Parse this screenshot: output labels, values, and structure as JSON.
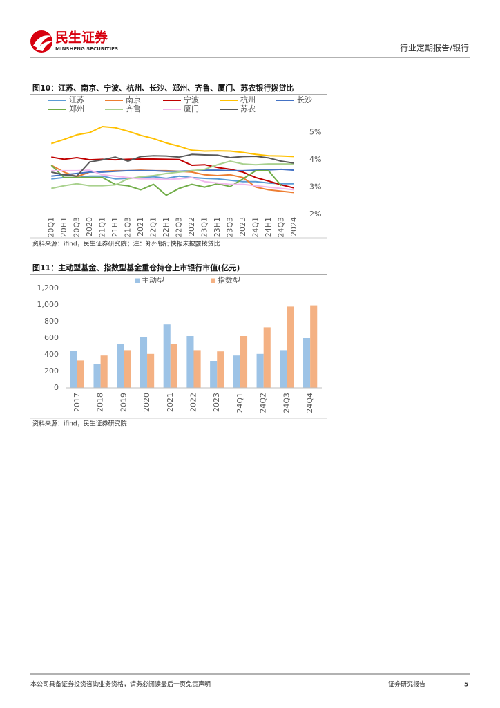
{
  "header": {
    "logo_cn": "民生证券",
    "logo_en": "MINSHENG SECURITIES",
    "section": "行业定期报告/银行"
  },
  "chart_data": [
    {
      "type": "line",
      "title": "图10：江苏、南京、宁波、杭州、长沙、郑州、齐鲁、厦门、苏农银行拨贷比",
      "source": "资料来源：ifind，民生证券研究院；注：郑州银行快报未披露拨贷比",
      "categories": [
        "20Q1",
        "20H1",
        "20Q3",
        "2020",
        "21Q1",
        "21H1",
        "21Q3",
        "2021",
        "22Q1",
        "22H1",
        "22Q3",
        "2022",
        "23Q1",
        "23H1",
        "23Q3",
        "2023",
        "24Q1",
        "24H1",
        "24Q3",
        "2024"
      ],
      "ylim": [
        2,
        5.5
      ],
      "yticks": [
        {
          "value": 2,
          "label": "2%"
        },
        {
          "value": 3,
          "label": "3%"
        },
        {
          "value": 4,
          "label": "4%"
        },
        {
          "value": 5,
          "label": "5%"
        }
      ],
      "y_axis_side": "right",
      "grid": false,
      "series": [
        {
          "name": "江苏",
          "color": "#5b9bd5",
          "values": [
            3.3,
            3.35,
            3.35,
            3.4,
            3.4,
            3.3,
            3.32,
            3.35,
            3.38,
            3.32,
            3.4,
            3.35,
            3.32,
            3.3,
            3.25,
            3.2,
            3.2,
            3.15,
            3.12,
            3.12
          ]
        },
        {
          "name": "南京",
          "color": "#ed7d31",
          "values": [
            3.8,
            3.55,
            3.38,
            3.55,
            3.58,
            3.6,
            3.6,
            3.62,
            3.6,
            3.6,
            3.58,
            3.55,
            3.45,
            3.42,
            3.45,
            3.35,
            3.0,
            2.9,
            2.85,
            2.8
          ]
        },
        {
          "name": "宁波",
          "color": "#c00000",
          "values": [
            4.1,
            4.02,
            4.08,
            4.0,
            4.02,
            4.0,
            4.02,
            4.03,
            4.03,
            4.02,
            4.01,
            3.8,
            3.82,
            3.72,
            3.65,
            3.55,
            3.35,
            3.22,
            3.08,
            2.97
          ]
        },
        {
          "name": "杭州",
          "color": "#ffc000",
          "values": [
            4.6,
            4.75,
            4.92,
            5.0,
            5.22,
            5.18,
            5.05,
            4.9,
            4.78,
            4.62,
            4.5,
            4.35,
            4.32,
            4.33,
            4.32,
            4.27,
            4.2,
            4.15,
            4.14,
            4.12
          ]
        },
        {
          "name": "长沙",
          "color": "#4472c4",
          "values": [
            3.4,
            3.45,
            3.5,
            3.55,
            3.55,
            3.58,
            3.6,
            3.6,
            3.6,
            3.58,
            3.58,
            3.6,
            3.62,
            3.62,
            3.6,
            3.6,
            3.62,
            3.63,
            3.65,
            3.62
          ]
        },
        {
          "name": "郑州",
          "color": "#70ad47",
          "values": [
            3.8,
            3.35,
            3.35,
            3.35,
            3.35,
            3.1,
            3.05,
            2.9,
            3.1,
            2.7,
            2.95,
            3.1,
            3.0,
            3.12,
            3.02,
            3.3,
            3.6,
            3.6,
            3.05,
            null
          ]
        },
        {
          "name": "齐鲁",
          "color": "#a9d18e",
          "values": [
            2.95,
            3.05,
            3.12,
            3.05,
            3.05,
            3.08,
            3.3,
            3.38,
            3.42,
            3.5,
            3.55,
            3.6,
            3.65,
            3.82,
            3.95,
            3.85,
            3.82,
            3.85,
            3.85,
            3.85
          ]
        },
        {
          "name": "厦门",
          "color": "#f2b8ee",
          "values": [
            3.6,
            3.6,
            3.6,
            3.62,
            3.45,
            3.4,
            3.35,
            3.3,
            3.3,
            3.28,
            3.3,
            3.35,
            3.2,
            3.15,
            3.1,
            3.1,
            3.05,
            3.0,
            2.95,
            2.9
          ]
        },
        {
          "name": "苏农",
          "color": "#595959",
          "values": [
            3.55,
            3.45,
            3.4,
            3.92,
            4.0,
            4.1,
            3.95,
            4.12,
            4.15,
            4.14,
            4.1,
            4.2,
            4.18,
            4.17,
            4.08,
            4.12,
            4.13,
            4.07,
            3.95,
            3.88
          ]
        }
      ]
    },
    {
      "type": "bar",
      "title": "图11：主动型基金、指数型基金重仓持仓上市银行市值(亿元)",
      "source": "资料来源：ifind，民生证券研究院",
      "categories": [
        "2017",
        "2018",
        "2019",
        "2020",
        "2021",
        "2022",
        "2023",
        "24Q1",
        "24Q2",
        "24Q3",
        "24Q4"
      ],
      "ylim": [
        0,
        1200
      ],
      "yticks": [
        0,
        200,
        400,
        600,
        800,
        {
          "value": 1000,
          "label": "1,000"
        },
        {
          "value": 1200,
          "label": "1,200"
        }
      ],
      "y_axis_side": "left",
      "grid": false,
      "series": [
        {
          "name": "主动型",
          "color": "#9dc3e6",
          "values": [
            445,
            285,
            530,
            615,
            765,
            625,
            325,
            390,
            410,
            455,
            600
          ]
        },
        {
          "name": "指数型",
          "color": "#f4b183",
          "values": [
            330,
            390,
            455,
            410,
            525,
            455,
            440,
            625,
            730,
            980,
            995
          ]
        }
      ]
    }
  ],
  "footer": {
    "disclaimer": "本公司具备证券投资咨询业务资格，请务必阅读最后一页免责声明",
    "report_type": "证券研究报告",
    "page": "5"
  }
}
